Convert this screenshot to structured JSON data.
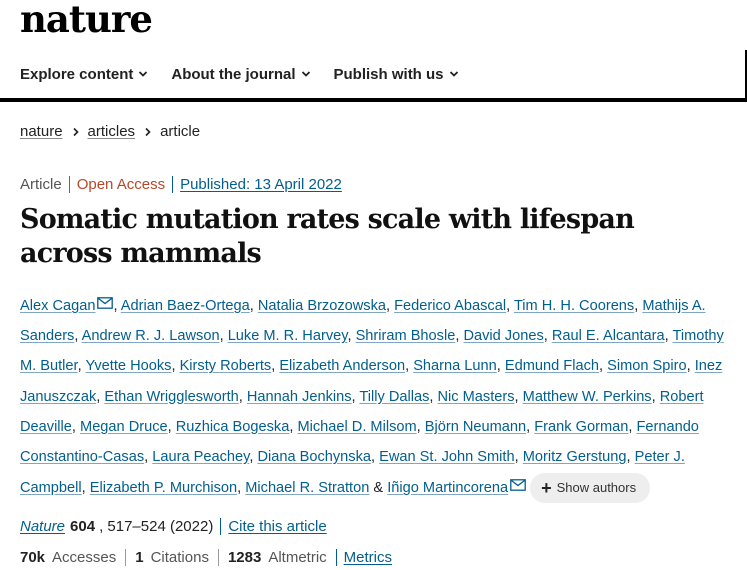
{
  "site": {
    "logo": "nature"
  },
  "nav": {
    "items": [
      {
        "label": "Explore content"
      },
      {
        "label": "About the journal"
      },
      {
        "label": "Publish with us"
      }
    ]
  },
  "breadcrumb": {
    "items": [
      "nature",
      "articles"
    ],
    "current": "article"
  },
  "article": {
    "type": "Article",
    "access": "Open Access",
    "published": "Published: 13 April 2022",
    "title": "Somatic mutation rates scale with lifespan across mammals",
    "show_authors": "Show authors",
    "authors": [
      "Alex Cagan",
      "Adrian Baez-Ortega",
      "Natalia Brzozowska",
      "Federico Abascal",
      "Tim H. H. Coorens",
      "Mathijs A. Sanders",
      "Andrew R. J. Lawson",
      "Luke M. R. Harvey",
      "Shriram Bhosle",
      "David Jones",
      "Raul E. Alcantara",
      "Timothy M. Butler",
      "Yvette Hooks",
      "Kirsty Roberts",
      "Elizabeth Anderson",
      "Sharna Lunn",
      "Edmund Flach",
      "Simon Spiro",
      "Inez Januszczak",
      "Ethan Wrigglesworth",
      "Hannah Jenkins",
      "Tilly Dallas",
      "Nic Masters",
      "Matthew W. Perkins",
      "Robert Deaville",
      "Megan Druce",
      "Ruzhica Bogeska",
      "Michael D. Milsom",
      "Björn Neumann",
      "Frank Gorman",
      "Fernando Constantino-Casas",
      "Laura Peachey",
      "Diana Bochynska",
      "Ewan St. John Smith",
      "Moritz Gerstung",
      "Peter J. Campbell",
      "Elizabeth P. Murchison",
      "Michael R. Stratton",
      "Iñigo Martincorena"
    ],
    "author_connector": "&",
    "corresponding_author_icon": "mail-icon"
  },
  "citation": {
    "journal": "Nature",
    "volume": "604",
    "pages": ", 517–524 (2022)",
    "cite_label": "Cite this article"
  },
  "metrics": {
    "accesses_value": "70k",
    "accesses_label": "Accesses",
    "citations_value": "1",
    "citations_label": "Citations",
    "altmetric_value": "1283",
    "altmetric_label": "Altmetric",
    "link_label": "Metrics"
  },
  "colors": {
    "link": "#025e8d",
    "open_access": "#b7472a",
    "text": "#222222"
  }
}
